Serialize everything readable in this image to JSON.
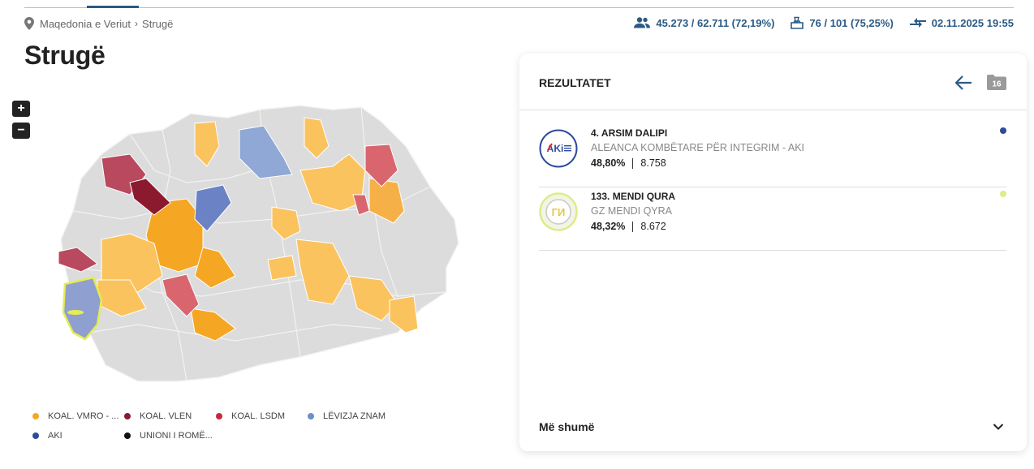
{
  "breadcrumb": {
    "root": "Maqedonia e Veriut",
    "current": "Strugë"
  },
  "stats": {
    "voters": "45.273 / 62.711 (72,19%)",
    "stations": "76 / 101 (75,25%)",
    "updated": "02.11.2025 19:55"
  },
  "page_title": "Strugë",
  "map": {
    "zoom_in": "+",
    "zoom_out": "−"
  },
  "legend": [
    {
      "label": "KOAL. VMRO - ...",
      "color": "#f5a623"
    },
    {
      "label": "KOAL. VLEN",
      "color": "#8b1a2f"
    },
    {
      "label": "KOAL. LSDM",
      "color": "#c8283c"
    },
    {
      "label": "LËVIZJA ZNAM",
      "color": "#6b8fc9"
    },
    {
      "label": "AKI",
      "color": "#2e4a9a"
    },
    {
      "label": "UNIONI I ROMË...",
      "color": "#111111"
    }
  ],
  "results": {
    "title": "REZULTATET",
    "folder_count": "16",
    "candidates": [
      {
        "name": "4. ARSIM DALIPI",
        "party": "ALEANCA KOMBËTARE PËR INTEGRIM - AKI",
        "percent": "48,80%",
        "votes": "8.758",
        "color": "#2e4a9a",
        "logo_text": "AKi"
      },
      {
        "name": "133. MENDI QURA",
        "party": "GZ MENDI QYRA",
        "percent": "48,32%",
        "votes": "8.672",
        "color": "#dcec8a",
        "logo_text": "ГИ"
      }
    ],
    "more": "Më shumë"
  },
  "colors": {
    "accent": "#2b5a85",
    "vmro": "#f5a623",
    "vmro_light": "#fbc35e",
    "vlen": "#8b1a2f",
    "vlen_light": "#b8495e",
    "lsdm": "#d9656f",
    "znam": "#8fa8d6",
    "aki": "#6b82c4",
    "neutral": "#dcdcdc",
    "highlight": "#e6ec52"
  }
}
